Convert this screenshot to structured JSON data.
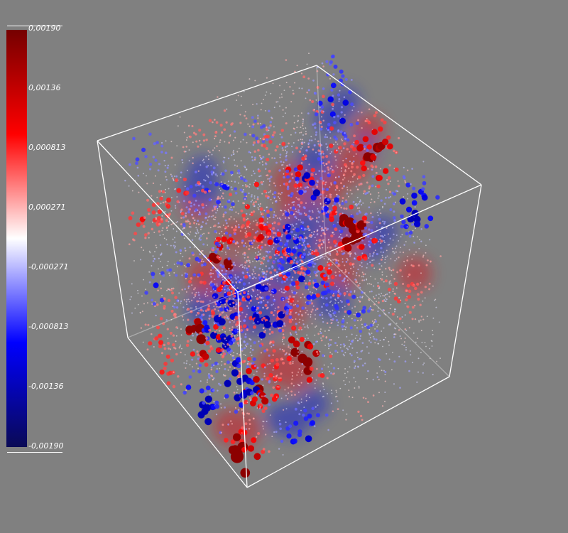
{
  "viewer": {
    "background_color": "#808080",
    "frame_color": "#ffffff"
  },
  "colorbar": {
    "colormap": "cool-to-warm (blue-white-red)",
    "min": -0.0019,
    "max": 0.0019,
    "colors": [
      "#0a0a55",
      "#0000ff",
      "#ffffff",
      "#ff0000",
      "#750000"
    ],
    "tick_labels": [
      "0,00190",
      "0,00136",
      "0,000813",
      "0,000271",
      "-0,000271",
      "-0,000813",
      "-0,00136",
      "-0,00190"
    ]
  },
  "scene": {
    "description_type": "3D point glyph volume in a wireframe cube",
    "colored_regions": [
      {
        "color": "#e61e1e",
        "level": 0.85
      },
      {
        "color": "#1e28d2",
        "level": -0.85
      }
    ]
  }
}
